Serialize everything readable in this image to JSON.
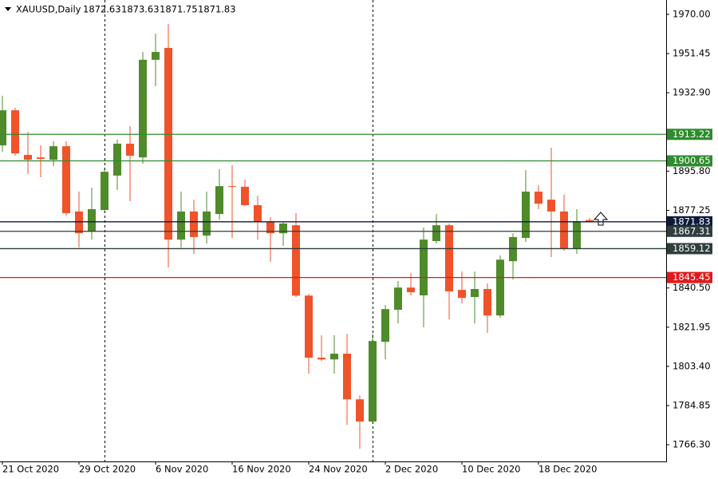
{
  "chart_data": {
    "type": "candlestick",
    "symbol": "XAUUSD,Daily",
    "categories": [
      "21 Oct 2020",
      null,
      null,
      null,
      null,
      null,
      "29 Oct 2020",
      null,
      null,
      null,
      null,
      null,
      "6 Nov 2020",
      null,
      null,
      null,
      null,
      null,
      "16 Nov 2020",
      null,
      null,
      null,
      null,
      null,
      "24 Nov 2020",
      null,
      null,
      null,
      null,
      null,
      "2 Dec 2020",
      null,
      null,
      null,
      null,
      null,
      "10 Dec 2020",
      null,
      null,
      null,
      null,
      null,
      "18 Dec 2020",
      null,
      null,
      null,
      null
    ],
    "open": [
      1908.0,
      1924.6,
      1903.5,
      1902.3,
      1901.2,
      1907.6,
      1876.7,
      1867.2,
      1877.4,
      1893.7,
      1908.8,
      1902.3,
      1948.5,
      1954.1,
      1863.4,
      1876.7,
      1865.3,
      1875.5,
      1888.7,
      1888.4,
      1879.7,
      1871.7,
      1866.4,
      1870.2,
      1836.9,
      1807.5,
      1806.7,
      1809.4,
      1787.8,
      1777.3,
      1815.0,
      1830.2,
      1840.7,
      1837.0,
      1862.7,
      1870.2,
      1839.6,
      1836.2,
      1840.0,
      1827.5,
      1853.2,
      1864.2,
      1886.1,
      1882.3,
      1876.7,
      1858.9,
      1872.63
    ],
    "high": [
      1931.5,
      1925.8,
      1914.4,
      1908.0,
      1909.9,
      1909.9,
      1886.1,
      1888.0,
      1897.4,
      1910.7,
      1917.1,
      1952.2,
      1960.9,
      1965.5,
      1886.1,
      1882.3,
      1886.1,
      1896.7,
      1898.6,
      1891.8,
      1884.2,
      1874.0,
      1871.7,
      1875.9,
      1837.7,
      1818.1,
      1818.1,
      1818.8,
      1789.7,
      1818.8,
      1832.4,
      1843.8,
      1847.5,
      1869.1,
      1875.5,
      1871.0,
      1848.3,
      1848.3,
      1842.6,
      1855.9,
      1866.4,
      1896.3,
      1889.1,
      1906.9,
      1884.6,
      1877.8,
      1873.63
    ],
    "low": [
      1905.0,
      1903.1,
      1894.4,
      1892.9,
      1898.2,
      1874.8,
      1859.6,
      1863.4,
      1876.7,
      1886.9,
      1881.6,
      1899.3,
      1936.0,
      1850.2,
      1859.6,
      1856.6,
      1861.5,
      1872.9,
      1864.2,
      1879.3,
      1863.4,
      1852.8,
      1860.4,
      1836.2,
      1799.9,
      1805.9,
      1799.9,
      1775.7,
      1764.4,
      1776.5,
      1806.7,
      1823.7,
      1837.0,
      1821.9,
      1861.5,
      1825.6,
      1833.2,
      1823.7,
      1819.2,
      1826.4,
      1844.5,
      1862.3,
      1877.8,
      1855.1,
      1858.1,
      1856.6,
      1871.75
    ],
    "close": [
      1924.6,
      1904.2,
      1901.2,
      1901.6,
      1907.6,
      1875.9,
      1866.4,
      1877.8,
      1895.5,
      1908.8,
      1903.1,
      1948.5,
      1952.2,
      1863.4,
      1876.7,
      1864.6,
      1876.7,
      1888.7,
      1888.4,
      1879.7,
      1871.7,
      1866.4,
      1871.0,
      1836.9,
      1807.5,
      1806.7,
      1809.4,
      1787.8,
      1777.3,
      1815.4,
      1830.5,
      1840.7,
      1838.5,
      1863.4,
      1870.2,
      1838.9,
      1835.8,
      1840.0,
      1827.5,
      1853.9,
      1864.6,
      1886.1,
      1880.4,
      1876.7,
      1858.9,
      1872.1,
      1871.83
    ],
    "up_color": "#4f8a2b",
    "down_color": "#f0522a",
    "ylim": [
      1758.4,
      1976.8
    ],
    "yticks": [
      {
        "value": 1970.0,
        "label": "1970.00"
      },
      {
        "value": 1951.45,
        "label": "1951.45"
      },
      {
        "value": 1932.9,
        "label": "1932.90"
      },
      {
        "value": 1895.8,
        "label": "1895.80"
      },
      {
        "value": 1877.25,
        "label": "1877.25"
      },
      {
        "value": 1840.5,
        "label": "1840.50"
      },
      {
        "value": 1821.95,
        "label": "1821.95"
      },
      {
        "value": 1803.4,
        "label": "1803.40"
      },
      {
        "value": 1784.85,
        "label": "1784.85"
      },
      {
        "value": 1766.3,
        "label": "1766.30"
      }
    ],
    "levels": [
      {
        "value": 1913.22,
        "color": "#2e8b2e"
      },
      {
        "value": 1900.65,
        "color": "#2e8b2e"
      },
      {
        "value": 1871.83,
        "color": "#0d1a3a"
      },
      {
        "value": 1867.31,
        "color": "#2f3d3d"
      },
      {
        "value": 1859.12,
        "color": "#2f3d3d"
      },
      {
        "value": 1845.45,
        "color": "#e0191a"
      }
    ]
  }
}
